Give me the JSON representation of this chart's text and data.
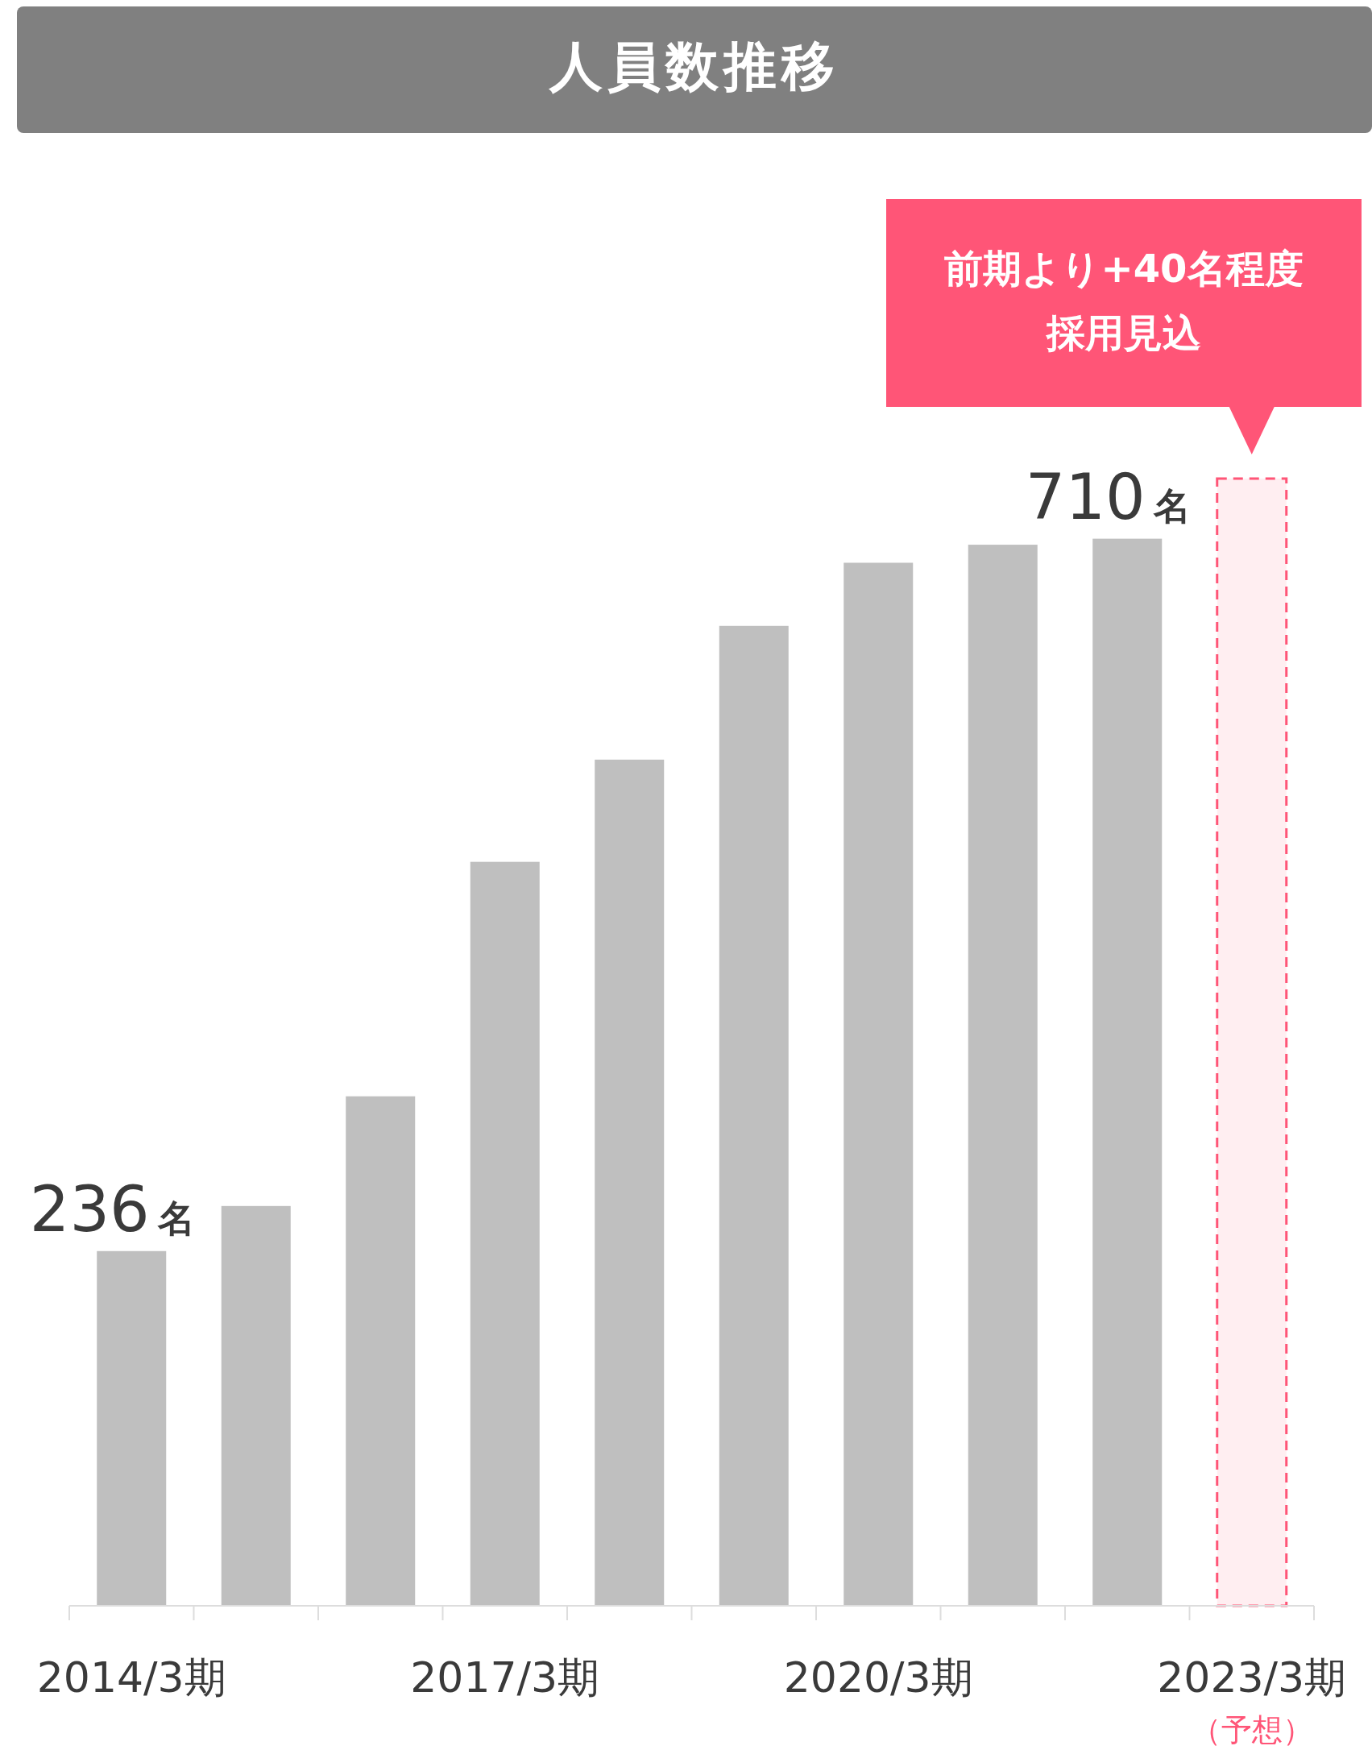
{
  "chart_data": {
    "type": "bar",
    "title": "人員数推移",
    "categories": [
      "2014/3期",
      null,
      null,
      "2017/3期",
      null,
      null,
      "2020/3期",
      null,
      null,
      "2023/3期"
    ],
    "series": [
      {
        "color": "#bfbfbf",
        "values": [
          236,
          266,
          339,
          495,
          563,
          652,
          694,
          706,
          710,
          null
        ],
        "value_labels": [
          "236名",
          null,
          null,
          null,
          null,
          null,
          null,
          null,
          "710名",
          null
        ]
      },
      {
        "color": "#ff5577",
        "line_style": "dashed",
        "values": [
          null,
          null,
          null,
          null,
          null,
          null,
          null,
          null,
          null,
          750
        ]
      }
    ],
    "annotations": [
      "前期より+40名程度採用見込",
      "（予想）"
    ]
  }
}
